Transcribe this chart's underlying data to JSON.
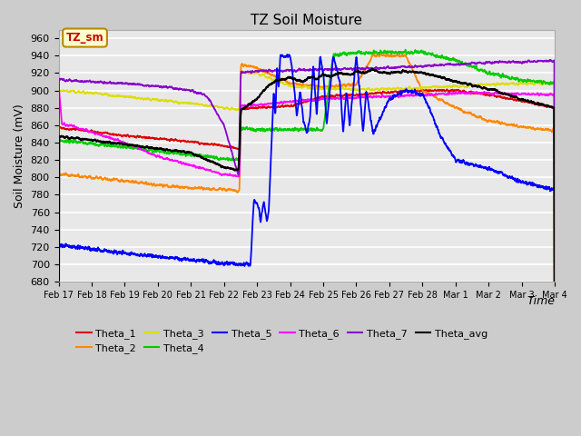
{
  "title": "TZ Soil Moisture",
  "xlabel": "Time",
  "ylabel": "Soil Moisture (mV)",
  "ylim": [
    680,
    970
  ],
  "xlim": [
    0,
    15
  ],
  "background_color": "#cccccc",
  "plot_bg_color": "#e0e0e0",
  "grid_color": "#f0f0f0",
  "colors": {
    "Theta_1": "#dd0000",
    "Theta_2": "#ff8800",
    "Theta_3": "#dddd00",
    "Theta_4": "#00cc00",
    "Theta_5": "#0000ff",
    "Theta_6": "#ff00ff",
    "Theta_7": "#8800cc",
    "Theta_avg": "#000000"
  },
  "xtick_labels": [
    "Feb 17",
    "Feb 18",
    "Feb 19",
    "Feb 20",
    "Feb 21",
    "Feb 22",
    "Feb 23",
    "Feb 24",
    "Feb 25",
    "Feb 26",
    "Feb 27",
    "Feb 28",
    "Mar 1",
    "Mar 2",
    "Mar 3",
    "Mar 4"
  ],
  "legend_label": "TZ_sm",
  "legend_box_color": "#ffffcc",
  "legend_border_color": "#bb8800",
  "legend_text_color": "#cc0000"
}
